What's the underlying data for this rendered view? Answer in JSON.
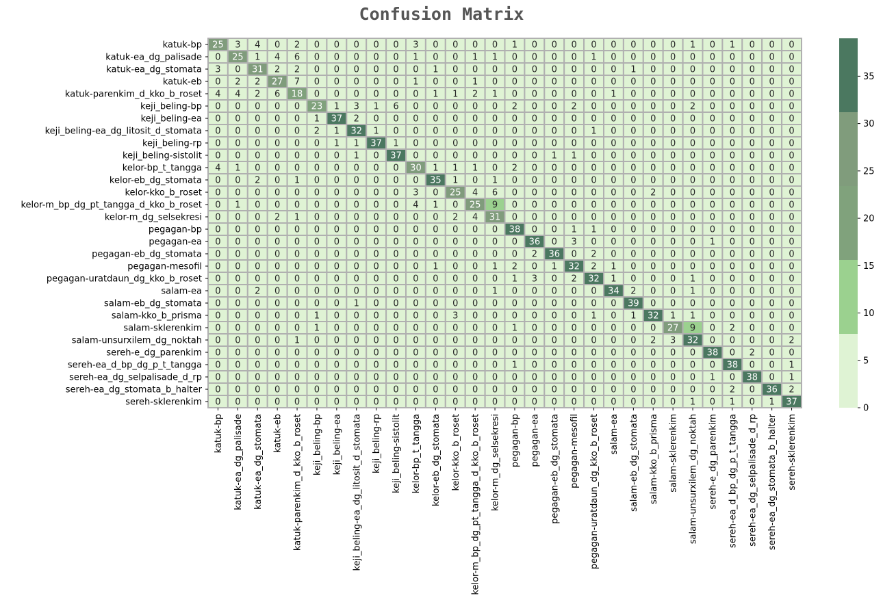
{
  "chart_data": {
    "type": "heatmap",
    "title": "Confusion Matrix",
    "xlabel": "",
    "ylabel": "",
    "labels": [
      "katuk-bp",
      "katuk-ea_dg_palisade",
      "katuk-ea_dg_stomata",
      "katuk-eb",
      "katuk-parenkim_d_kko_b_roset",
      "keji_beling-bp",
      "keji_beling-ea",
      "keji_beling-ea_dg_litosit_d_stomata",
      "keji_beling-rp",
      "keji_beling-sistolit",
      "kelor-bp_t_tangga",
      "kelor-eb_dg_stomata",
      "kelor-kko_b_roset",
      "kelor-m_bp_dg_pt_tangga_d_kko_b_roset",
      "kelor-m_dg_selsekresi",
      "pegagan-bp",
      "pegagan-ea",
      "pegagan-eb_dg_stomata",
      "pegagan-mesofil",
      "pegagan-uratdaun_dg_kko_b_roset",
      "salam-ea",
      "salam-eb_dg_stomata",
      "salam-kko_b_prisma",
      "salam-sklerenkim",
      "salam-unsurxilem_dg_noktah",
      "sereh-e_dg_parenkim",
      "sereh-ea_d_bp_dg_p_t_tangga",
      "sereh-ea_dg_selpalisade_d_rp",
      "sereh-ea_dg_stomata_b_halter",
      "sereh-sklerenkim"
    ],
    "matrix": [
      [
        25,
        3,
        4,
        0,
        2,
        0,
        0,
        0,
        0,
        0,
        3,
        0,
        0,
        0,
        0,
        1,
        0,
        0,
        0,
        0,
        0,
        0,
        0,
        0,
        1,
        0,
        1,
        0,
        0,
        0
      ],
      [
        0,
        25,
        1,
        4,
        6,
        0,
        0,
        0,
        0,
        0,
        1,
        0,
        0,
        1,
        1,
        0,
        0,
        0,
        0,
        1,
        0,
        0,
        0,
        0,
        0,
        0,
        0,
        0,
        0,
        0
      ],
      [
        3,
        0,
        31,
        2,
        2,
        0,
        0,
        0,
        0,
        0,
        0,
        1,
        0,
        0,
        0,
        0,
        0,
        0,
        0,
        0,
        0,
        1,
        0,
        0,
        0,
        0,
        0,
        0,
        0,
        0
      ],
      [
        0,
        2,
        2,
        27,
        7,
        0,
        0,
        0,
        0,
        0,
        1,
        0,
        0,
        1,
        0,
        0,
        0,
        0,
        0,
        0,
        0,
        0,
        0,
        0,
        0,
        0,
        0,
        0,
        0,
        0
      ],
      [
        4,
        4,
        2,
        6,
        18,
        0,
        0,
        0,
        0,
        0,
        0,
        1,
        1,
        2,
        1,
        0,
        0,
        0,
        0,
        0,
        1,
        0,
        0,
        0,
        0,
        0,
        0,
        0,
        0,
        0
      ],
      [
        0,
        0,
        0,
        0,
        0,
        23,
        1,
        3,
        1,
        6,
        0,
        0,
        0,
        0,
        0,
        2,
        0,
        0,
        2,
        0,
        0,
        0,
        0,
        0,
        2,
        0,
        0,
        0,
        0,
        0
      ],
      [
        0,
        0,
        0,
        0,
        0,
        1,
        37,
        2,
        0,
        0,
        0,
        0,
        0,
        0,
        0,
        0,
        0,
        0,
        0,
        0,
        0,
        0,
        0,
        0,
        0,
        0,
        0,
        0,
        0,
        0
      ],
      [
        0,
        0,
        0,
        0,
        0,
        2,
        1,
        32,
        1,
        0,
        0,
        0,
        0,
        0,
        0,
        0,
        0,
        0,
        0,
        1,
        0,
        0,
        0,
        0,
        0,
        0,
        0,
        0,
        0,
        0
      ],
      [
        0,
        0,
        0,
        0,
        0,
        0,
        1,
        1,
        37,
        1,
        0,
        0,
        0,
        0,
        0,
        0,
        0,
        0,
        0,
        0,
        0,
        0,
        0,
        0,
        0,
        0,
        0,
        0,
        0,
        0
      ],
      [
        0,
        0,
        0,
        0,
        0,
        0,
        0,
        1,
        0,
        37,
        0,
        0,
        0,
        0,
        0,
        0,
        0,
        1,
        1,
        0,
        0,
        0,
        0,
        0,
        0,
        0,
        0,
        0,
        0,
        0
      ],
      [
        4,
        1,
        0,
        0,
        0,
        0,
        0,
        0,
        0,
        0,
        30,
        1,
        1,
        1,
        0,
        2,
        0,
        0,
        0,
        0,
        0,
        0,
        0,
        0,
        0,
        0,
        0,
        0,
        0,
        0
      ],
      [
        0,
        0,
        2,
        0,
        1,
        0,
        0,
        0,
        0,
        0,
        0,
        35,
        1,
        0,
        1,
        0,
        0,
        0,
        0,
        0,
        0,
        0,
        0,
        0,
        0,
        0,
        0,
        0,
        0,
        0
      ],
      [
        0,
        0,
        0,
        0,
        0,
        0,
        0,
        0,
        0,
        0,
        3,
        0,
        25,
        4,
        6,
        0,
        0,
        0,
        0,
        0,
        0,
        0,
        2,
        0,
        0,
        0,
        0,
        0,
        0,
        0
      ],
      [
        0,
        1,
        0,
        0,
        0,
        0,
        0,
        0,
        0,
        0,
        4,
        1,
        0,
        25,
        9,
        0,
        0,
        0,
        0,
        0,
        0,
        0,
        0,
        0,
        0,
        0,
        0,
        0,
        0,
        0
      ],
      [
        0,
        0,
        0,
        2,
        1,
        0,
        0,
        0,
        0,
        0,
        0,
        0,
        2,
        4,
        31,
        0,
        0,
        0,
        0,
        0,
        0,
        0,
        0,
        0,
        0,
        0,
        0,
        0,
        0,
        0
      ],
      [
        0,
        0,
        0,
        0,
        0,
        0,
        0,
        0,
        0,
        0,
        0,
        0,
        0,
        0,
        0,
        38,
        0,
        0,
        1,
        1,
        0,
        0,
        0,
        0,
        0,
        0,
        0,
        0,
        0,
        0
      ],
      [
        0,
        0,
        0,
        0,
        0,
        0,
        0,
        0,
        0,
        0,
        0,
        0,
        0,
        0,
        0,
        0,
        36,
        0,
        3,
        0,
        0,
        0,
        0,
        0,
        0,
        1,
        0,
        0,
        0,
        0
      ],
      [
        0,
        0,
        0,
        0,
        0,
        0,
        0,
        0,
        0,
        0,
        0,
        0,
        0,
        0,
        0,
        0,
        2,
        36,
        0,
        2,
        0,
        0,
        0,
        0,
        0,
        0,
        0,
        0,
        0,
        0
      ],
      [
        0,
        0,
        0,
        0,
        0,
        0,
        0,
        0,
        0,
        0,
        0,
        1,
        0,
        0,
        1,
        2,
        0,
        1,
        32,
        2,
        1,
        0,
        0,
        0,
        0,
        0,
        0,
        0,
        0,
        0
      ],
      [
        0,
        0,
        0,
        0,
        0,
        0,
        0,
        0,
        0,
        0,
        0,
        0,
        0,
        0,
        0,
        1,
        3,
        0,
        2,
        32,
        1,
        0,
        0,
        0,
        1,
        0,
        0,
        0,
        0,
        0
      ],
      [
        0,
        0,
        2,
        0,
        0,
        0,
        0,
        0,
        0,
        0,
        0,
        0,
        0,
        0,
        1,
        0,
        0,
        0,
        0,
        0,
        34,
        2,
        0,
        0,
        1,
        0,
        0,
        0,
        0,
        0
      ],
      [
        0,
        0,
        0,
        0,
        0,
        0,
        0,
        1,
        0,
        0,
        0,
        0,
        0,
        0,
        0,
        0,
        0,
        0,
        0,
        0,
        0,
        39,
        0,
        0,
        0,
        0,
        0,
        0,
        0,
        0
      ],
      [
        0,
        0,
        0,
        0,
        0,
        1,
        0,
        0,
        0,
        0,
        0,
        0,
        3,
        0,
        0,
        0,
        0,
        0,
        0,
        1,
        0,
        1,
        32,
        1,
        1,
        0,
        0,
        0,
        0,
        0
      ],
      [
        0,
        0,
        0,
        0,
        0,
        1,
        0,
        0,
        0,
        0,
        0,
        0,
        0,
        0,
        0,
        1,
        0,
        0,
        0,
        0,
        0,
        0,
        0,
        27,
        9,
        0,
        2,
        0,
        0,
        0
      ],
      [
        0,
        0,
        0,
        0,
        1,
        0,
        0,
        0,
        0,
        0,
        0,
        0,
        0,
        0,
        0,
        0,
        0,
        0,
        0,
        0,
        0,
        0,
        2,
        3,
        32,
        0,
        0,
        0,
        0,
        2
      ],
      [
        0,
        0,
        0,
        0,
        0,
        0,
        0,
        0,
        0,
        0,
        0,
        0,
        0,
        0,
        0,
        0,
        0,
        0,
        0,
        0,
        0,
        0,
        0,
        0,
        0,
        38,
        0,
        2,
        0,
        0
      ],
      [
        0,
        0,
        0,
        0,
        0,
        0,
        0,
        0,
        0,
        0,
        0,
        0,
        0,
        0,
        0,
        1,
        0,
        0,
        0,
        0,
        0,
        0,
        0,
        0,
        0,
        0,
        38,
        0,
        0,
        1
      ],
      [
        0,
        0,
        0,
        0,
        0,
        0,
        0,
        0,
        0,
        0,
        0,
        0,
        0,
        0,
        0,
        0,
        0,
        0,
        0,
        0,
        0,
        0,
        0,
        0,
        0,
        1,
        0,
        38,
        0,
        1
      ],
      [
        0,
        0,
        0,
        0,
        0,
        0,
        0,
        0,
        0,
        0,
        0,
        0,
        0,
        0,
        0,
        0,
        0,
        0,
        0,
        0,
        0,
        0,
        0,
        0,
        0,
        0,
        2,
        0,
        36,
        2
      ],
      [
        0,
        0,
        0,
        0,
        0,
        0,
        0,
        0,
        0,
        0,
        0,
        0,
        0,
        0,
        0,
        0,
        0,
        0,
        0,
        0,
        0,
        0,
        0,
        0,
        1,
        0,
        1,
        0,
        1,
        37
      ]
    ],
    "colorbar": {
      "range": [
        0,
        39
      ],
      "ticks": [
        0,
        5,
        10,
        15,
        20,
        25,
        30,
        35
      ],
      "bins": [
        {
          "from": 0,
          "to": 7.8,
          "color": "#dff3d4"
        },
        {
          "from": 7.8,
          "to": 15.6,
          "color": "#9bd18f"
        },
        {
          "from": 15.6,
          "to": 23.4,
          "color": "#80a27c"
        },
        {
          "from": 23.4,
          "to": 31.2,
          "color": "#809c7c"
        },
        {
          "from": 31.2,
          "to": 39,
          "color": "#4b7860"
        }
      ]
    },
    "cell_border_color": "#b0b0b0",
    "text_dark": "#262626",
    "text_light": "#ffffff"
  }
}
